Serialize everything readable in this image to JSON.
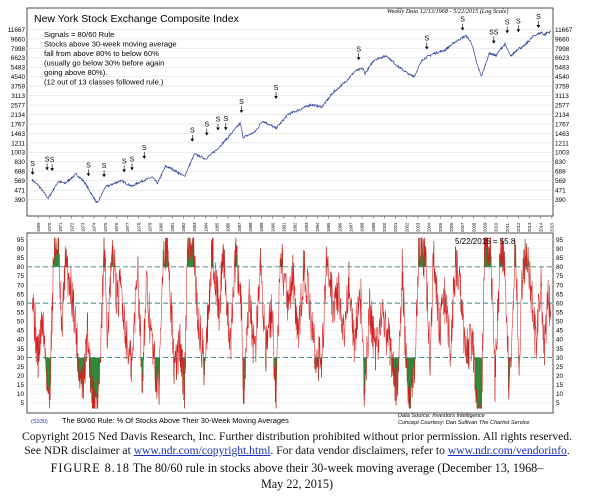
{
  "header": {
    "title": "New York Stock Exchange Composite Index",
    "meta": "Weekly Data 12/13/1968 - 5/22/2015 (Log Scale)"
  },
  "annotation": {
    "lines": [
      "Signals = 80/60 Rule",
      "Stocks above 30-week moving average",
      "fall from above 80% to below 60%",
      "(usually go below 30% before again",
      "going above 80%).",
      "(12 out of 13 classes followed rule.)"
    ]
  },
  "bottom_panel": {
    "title": "The 80/60 Rule: % Of Stocks Above Their 30-Week Moving Averages",
    "code": "(S330)",
    "latest": "5/22/2015 = 55.8",
    "source": "Data Source: Investors Intelligence",
    "courtesy": "Concept Courtesy: Dan Sullivan The Chartist Service"
  },
  "caption": {
    "copyright": "Copyright 2015 Ned Davis Research, Inc. Further distribution prohibited without prior permission. All rights reserved.",
    "disclaimer_prefix": "See NDR disclaimer at ",
    "disclaimer_link1": "www.ndr.com/copyright.html",
    "disclaimer_mid": ". For data vendor disclaimers, refer to ",
    "disclaimer_link2": "www.ndr.com/vendorinfo",
    "disclaimer_suffix": ".",
    "figure_label": "FIGURE 8.18",
    "figure_text": "The 80/60 rule in stocks above their 30-week moving average (December 13, 1968–",
    "figure_text2": "May 22, 2015)"
  },
  "chart_data": [
    {
      "type": "line",
      "name": "nyse-composite",
      "title": "New York Stock Exchange Composite Index",
      "scale": "log",
      "yticks": [
        390,
        471,
        569,
        688,
        830,
        1003,
        1211,
        1463,
        1767,
        2134,
        2577,
        3113,
        3759,
        4540,
        5483,
        6623,
        7998,
        9660,
        11667
      ],
      "ylim": [
        330,
        12500
      ],
      "x_years": [
        "1969",
        "1970",
        "1971",
        "1972",
        "1973",
        "1974",
        "1975",
        "1976",
        "1977",
        "1978",
        "1979",
        "1980",
        "1981",
        "1982",
        "1983",
        "1984",
        "1985",
        "1986",
        "1987",
        "1988",
        "1989",
        "1990",
        "1991",
        "1992",
        "1993",
        "1994",
        "1995",
        "1996",
        "1997",
        "1998",
        "1999",
        "2000",
        "2001",
        "2002",
        "2003",
        "2004",
        "2005",
        "2006",
        "2007",
        "2008",
        "2009",
        "2010",
        "2011",
        "2012",
        "2013",
        "2014",
        "2015"
      ],
      "anchors": [
        [
          1968.95,
          580
        ],
        [
          1969.5,
          520
        ],
        [
          1970.4,
          400
        ],
        [
          1971.3,
          560
        ],
        [
          1971.9,
          540
        ],
        [
          1972.9,
          650
        ],
        [
          1973.6,
          560
        ],
        [
          1974.8,
          360
        ],
        [
          1975.5,
          500
        ],
        [
          1976.9,
          570
        ],
        [
          1977.9,
          510
        ],
        [
          1978.7,
          560
        ],
        [
          1979.7,
          610
        ],
        [
          1980.2,
          540
        ],
        [
          1980.9,
          760
        ],
        [
          1981.5,
          720
        ],
        [
          1982.6,
          620
        ],
        [
          1983.5,
          970
        ],
        [
          1984.5,
          880
        ],
        [
          1985.5,
          1060
        ],
        [
          1986.5,
          1350
        ],
        [
          1987.6,
          1800
        ],
        [
          1987.85,
          1350
        ],
        [
          1988.9,
          1500
        ],
        [
          1989.6,
          1880
        ],
        [
          1990.8,
          1620
        ],
        [
          1991.9,
          2150
        ],
        [
          1992.9,
          2350
        ],
        [
          1993.9,
          2600
        ],
        [
          1994.9,
          2480
        ],
        [
          1995.9,
          3300
        ],
        [
          1996.9,
          4000
        ],
        [
          1997.9,
          5100
        ],
        [
          1998.6,
          5350
        ],
        [
          1998.75,
          4800
        ],
        [
          1999.6,
          6400
        ],
        [
          2000.7,
          6900
        ],
        [
          2001.7,
          5600
        ],
        [
          2002.8,
          4700
        ],
        [
          2003.2,
          4600
        ],
        [
          2003.9,
          6400
        ],
        [
          2004.9,
          7200
        ],
        [
          2005.9,
          7700
        ],
        [
          2006.9,
          9200
        ],
        [
          2007.8,
          10300
        ],
        [
          2008.3,
          9000
        ],
        [
          2008.8,
          5800
        ],
        [
          2009.2,
          4600
        ],
        [
          2009.9,
          7300
        ],
        [
          2010.5,
          6900
        ],
        [
          2010.9,
          7900
        ],
        [
          2011.3,
          8700
        ],
        [
          2011.8,
          6800
        ],
        [
          2012.5,
          8000
        ],
        [
          2012.9,
          8200
        ],
        [
          2013.9,
          10300
        ],
        [
          2014.6,
          11000
        ],
        [
          2014.8,
          10400
        ],
        [
          2015.1,
          11000
        ],
        [
          2015.39,
          11100
        ]
      ],
      "signals": [
        {
          "label": "S",
          "x": 1969.0,
          "y": 640
        },
        {
          "label": "S",
          "x": 1970.3,
          "y": 700
        },
        {
          "label": "S",
          "x": 1970.75,
          "y": 690
        },
        {
          "label": "S",
          "x": 1974.0,
          "y": 620
        },
        {
          "label": "S",
          "x": 1975.4,
          "y": 610
        },
        {
          "label": "S",
          "x": 1977.2,
          "y": 670
        },
        {
          "label": "S",
          "x": 1977.9,
          "y": 700
        },
        {
          "label": "S",
          "x": 1979.0,
          "y": 880
        },
        {
          "label": "S",
          "x": 1983.3,
          "y": 1240
        },
        {
          "label": "S",
          "x": 1984.6,
          "y": 1400
        },
        {
          "label": "S",
          "x": 1985.6,
          "y": 1550
        },
        {
          "label": "S",
          "x": 1986.3,
          "y": 1560
        },
        {
          "label": "S",
          "x": 1987.7,
          "y": 2200
        },
        {
          "label": "S",
          "x": 1990.8,
          "y": 2900
        },
        {
          "label": "S",
          "x": 1998.2,
          "y": 6300
        },
        {
          "label": "S",
          "x": 2004.3,
          "y": 7800
        },
        {
          "label": "S",
          "x": 2007.5,
          "y": 11400
        },
        {
          "label": "SS",
          "x": 2010.3,
          "y": 8800
        },
        {
          "label": "S",
          "x": 2011.5,
          "y": 10800
        },
        {
          "label": "S",
          "x": 2012.5,
          "y": 11000
        },
        {
          "label": "S",
          "x": 2014.3,
          "y": 12000
        }
      ]
    },
    {
      "type": "line",
      "name": "pct-above-30wk-ma",
      "title": "The 80/60 Rule: % Of Stocks Above Their 30-Week Moving Averages",
      "ylim": [
        0,
        97
      ],
      "yticks": [
        5,
        10,
        15,
        20,
        25,
        30,
        35,
        40,
        45,
        50,
        55,
        60,
        65,
        70,
        75,
        80,
        85,
        90,
        95
      ],
      "reference_lines": [
        80,
        60,
        30
      ],
      "latest": {
        "date": "5/22/2015",
        "value": 55.8
      },
      "anchors": [
        [
          1968.95,
          70
        ],
        [
          1969.3,
          40
        ],
        [
          1969.5,
          30
        ],
        [
          1969.9,
          52
        ],
        [
          1970.3,
          18
        ],
        [
          1970.5,
          3
        ],
        [
          1970.9,
          88
        ],
        [
          1971.3,
          93
        ],
        [
          1971.6,
          40
        ],
        [
          1971.9,
          82
        ],
        [
          1972.4,
          70
        ],
        [
          1972.8,
          52
        ],
        [
          1973.2,
          20
        ],
        [
          1973.6,
          15
        ],
        [
          1973.9,
          45
        ],
        [
          1974.3,
          13
        ],
        [
          1974.8,
          3
        ],
        [
          1975.1,
          30
        ],
        [
          1975.4,
          90
        ],
        [
          1975.7,
          45
        ],
        [
          1976.2,
          88
        ],
        [
          1976.6,
          60
        ],
        [
          1976.9,
          70
        ],
        [
          1977.5,
          35
        ],
        [
          1977.9,
          24
        ],
        [
          1978.4,
          83
        ],
        [
          1978.8,
          18
        ],
        [
          1979.2,
          68
        ],
        [
          1979.8,
          32
        ],
        [
          1980.3,
          9
        ],
        [
          1980.7,
          95
        ],
        [
          1981.2,
          82
        ],
        [
          1981.7,
          22
        ],
        [
          1982.2,
          38
        ],
        [
          1982.6,
          12
        ],
        [
          1982.9,
          96
        ],
        [
          1983.4,
          88
        ],
        [
          1983.8,
          52
        ],
        [
          1984.4,
          25
        ],
        [
          1984.8,
          62
        ],
        [
          1985.1,
          90
        ],
        [
          1985.7,
          55
        ],
        [
          1986.1,
          88
        ],
        [
          1986.7,
          34
        ],
        [
          1987.2,
          88
        ],
        [
          1987.7,
          60
        ],
        [
          1987.9,
          5
        ],
        [
          1988.4,
          62
        ],
        [
          1988.9,
          30
        ],
        [
          1989.4,
          82
        ],
        [
          1989.9,
          35
        ],
        [
          1990.4,
          55
        ],
        [
          1990.8,
          9
        ],
        [
          1991.2,
          90
        ],
        [
          1991.8,
          60
        ],
        [
          1992.3,
          75
        ],
        [
          1992.8,
          38
        ],
        [
          1993.3,
          82
        ],
        [
          1993.8,
          58
        ],
        [
          1994.3,
          32
        ],
        [
          1994.9,
          28
        ],
        [
          1995.3,
          82
        ],
        [
          1995.9,
          60
        ],
        [
          1996.4,
          68
        ],
        [
          1996.8,
          38
        ],
        [
          1997.3,
          73
        ],
        [
          1997.8,
          40
        ],
        [
          1998.4,
          62
        ],
        [
          1998.7,
          8
        ],
        [
          1999.2,
          58
        ],
        [
          1999.7,
          34
        ],
        [
          2000.3,
          52
        ],
        [
          2000.8,
          42
        ],
        [
          2001.3,
          25
        ],
        [
          2001.7,
          9
        ],
        [
          2002.1,
          78
        ],
        [
          2002.6,
          5
        ],
        [
          2003.2,
          22
        ],
        [
          2003.6,
          93
        ],
        [
          2004.2,
          82
        ],
        [
          2004.6,
          28
        ],
        [
          2004.9,
          88
        ],
        [
          2005.4,
          45
        ],
        [
          2005.9,
          62
        ],
        [
          2006.4,
          35
        ],
        [
          2006.9,
          85
        ],
        [
          2007.4,
          60
        ],
        [
          2007.8,
          32
        ],
        [
          2008.4,
          38
        ],
        [
          2008.8,
          4
        ],
        [
          2009.2,
          5
        ],
        [
          2009.5,
          95
        ],
        [
          2010.0,
          90
        ],
        [
          2010.4,
          18
        ],
        [
          2010.9,
          88
        ],
        [
          2011.3,
          82
        ],
        [
          2011.7,
          8
        ],
        [
          2012.2,
          90
        ],
        [
          2012.6,
          28
        ],
        [
          2012.9,
          82
        ],
        [
          2013.4,
          85
        ],
        [
          2013.7,
          62
        ],
        [
          2014.1,
          35
        ],
        [
          2014.5,
          75
        ],
        [
          2014.8,
          32
        ],
        [
          2015.1,
          62
        ],
        [
          2015.39,
          55.8
        ]
      ]
    }
  ]
}
